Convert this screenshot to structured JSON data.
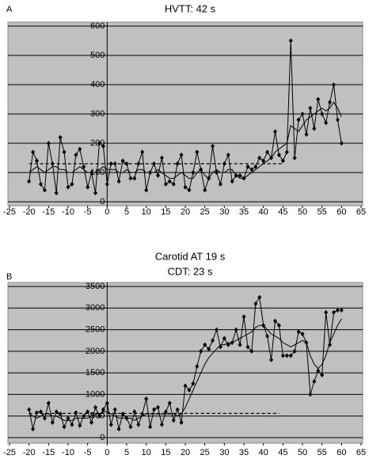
{
  "chart_data": [
    {
      "type": "line",
      "label": "A",
      "title": "HVTT: 42 s",
      "xlim": [
        -25,
        65
      ],
      "xticks": [
        -25,
        -20,
        -15,
        -10,
        -5,
        0,
        5,
        10,
        15,
        20,
        25,
        30,
        35,
        40,
        45,
        50,
        55,
        60,
        65
      ],
      "ylim": [
        0,
        600
      ],
      "yticks": [
        0,
        100,
        200,
        300,
        400,
        500,
        600
      ],
      "grid": true,
      "x": [
        -20,
        -19,
        -18,
        -17,
        -16,
        -15,
        -14,
        -13,
        -12,
        -11,
        -10,
        -9,
        -8,
        -7,
        -6,
        -5,
        -4,
        -3,
        -2,
        -1,
        0,
        1,
        2,
        3,
        4,
        5,
        6,
        7,
        8,
        9,
        10,
        11,
        12,
        13,
        14,
        15,
        16,
        17,
        18,
        19,
        20,
        21,
        22,
        23,
        24,
        25,
        26,
        27,
        28,
        29,
        30,
        31,
        32,
        33,
        34,
        35,
        36,
        37,
        38,
        39,
        40,
        41,
        42,
        43,
        44,
        45,
        46,
        47,
        48,
        49,
        50,
        51,
        52,
        53,
        54,
        55,
        56,
        57,
        58,
        59,
        60
      ],
      "series": [
        {
          "color": "#000000",
          "markers": true,
          "values": [
            70,
            170,
            140,
            60,
            40,
            200,
            130,
            30,
            220,
            170,
            50,
            60,
            160,
            180,
            120,
            50,
            100,
            30,
            200,
            190,
            60,
            130,
            130,
            70,
            140,
            130,
            80,
            80,
            130,
            170,
            40,
            100,
            130,
            90,
            150,
            60,
            70,
            60,
            130,
            160,
            50,
            40,
            100,
            170,
            110,
            40,
            80,
            190,
            100,
            60,
            130,
            160,
            70,
            90,
            90,
            80,
            120,
            110,
            120,
            150,
            140,
            170,
            150,
            240,
            160,
            140,
            170,
            550,
            150,
            280,
            300,
            230,
            320,
            250,
            350,
            300,
            270,
            340,
            400,
            280,
            200
          ]
        },
        {
          "color": "#000000",
          "markers": false,
          "values": [
            100,
            110,
            120,
            110,
            100,
            110,
            120,
            120,
            110,
            110,
            100,
            100,
            110,
            120,
            110,
            100,
            100,
            100,
            110,
            120,
            110,
            110,
            110,
            100,
            100,
            110,
            100,
            100,
            110,
            110,
            100,
            100,
            100,
            110,
            100,
            90,
            80,
            80,
            90,
            100,
            90,
            80,
            80,
            100,
            110,
            90,
            80,
            100,
            110,
            100,
            100,
            110,
            110,
            90,
            80,
            80,
            90,
            100,
            110,
            120,
            130,
            140,
            150,
            170,
            180,
            190,
            200,
            260,
            250,
            240,
            260,
            280,
            290,
            300,
            310,
            320,
            310,
            320,
            340,
            320,
            290
          ]
        },
        {
          "color": "#000000",
          "dashed": true,
          "markers": false,
          "x": [
            -20,
            45
          ],
          "values": [
            130,
            130
          ]
        }
      ]
    },
    {
      "type": "line",
      "label": "B",
      "title": "Carotid AT 19 s",
      "subtitle": "CDT: 23 s",
      "xlim": [
        -25,
        65
      ],
      "xticks": [
        -25,
        -20,
        -15,
        -10,
        -5,
        0,
        5,
        10,
        15,
        20,
        25,
        30,
        35,
        40,
        45,
        50,
        55,
        60,
        65
      ],
      "ylim": [
        0,
        3500
      ],
      "yticks": [
        0,
        500,
        1000,
        1500,
        2000,
        2500,
        3000,
        3500
      ],
      "grid": true,
      "x": [
        -20,
        -19,
        -18,
        -17,
        -16,
        -15,
        -14,
        -13,
        -12,
        -11,
        -10,
        -9,
        -8,
        -7,
        -6,
        -5,
        -4,
        -3,
        -2,
        -1,
        0,
        1,
        2,
        3,
        4,
        5,
        6,
        7,
        8,
        9,
        10,
        11,
        12,
        13,
        14,
        15,
        16,
        17,
        18,
        19,
        20,
        21,
        22,
        23,
        24,
        25,
        26,
        27,
        28,
        29,
        30,
        31,
        32,
        33,
        34,
        35,
        36,
        37,
        38,
        39,
        40,
        41,
        42,
        43,
        44,
        45,
        46,
        47,
        48,
        49,
        50,
        51,
        52,
        53,
        54,
        55,
        56,
        57,
        58,
        59,
        60
      ],
      "series": [
        {
          "color": "#000000",
          "markers": true,
          "values": [
            650,
            200,
            580,
            600,
            450,
            800,
            350,
            600,
            550,
            250,
            450,
            300,
            580,
            280,
            500,
            600,
            350,
            700,
            500,
            650,
            800,
            300,
            650,
            200,
            550,
            450,
            250,
            600,
            300,
            550,
            900,
            250,
            650,
            700,
            300,
            600,
            800,
            400,
            650,
            350,
            1200,
            1100,
            1250,
            1650,
            2000,
            2150,
            2050,
            2250,
            2500,
            2100,
            2300,
            2150,
            2200,
            2500,
            2150,
            2800,
            2100,
            2000,
            3100,
            3250,
            2600,
            2350,
            1800,
            2700,
            2600,
            1900,
            1900,
            1900,
            2000,
            2450,
            2400,
            2200,
            1000,
            1300,
            1550,
            1450,
            2900,
            2150,
            2900,
            2950,
            2950
          ]
        },
        {
          "color": "#000000",
          "markers": false,
          "values": [
            550,
            500,
            450,
            500,
            550,
            550,
            500,
            500,
            450,
            400,
            400,
            400,
            450,
            450,
            450,
            450,
            500,
            550,
            550,
            600,
            600,
            550,
            500,
            450,
            450,
            450,
            450,
            400,
            450,
            500,
            550,
            550,
            550,
            550,
            550,
            550,
            550,
            550,
            500,
            550,
            700,
            900,
            1100,
            1300,
            1500,
            1700,
            1850,
            1950,
            2050,
            2150,
            2150,
            2200,
            2200,
            2250,
            2300,
            2350,
            2400,
            2450,
            2550,
            2600,
            2600,
            2500,
            2400,
            2350,
            2300,
            2200,
            2150,
            2100,
            2150,
            2200,
            2250,
            2200,
            1900,
            1700,
            1600,
            1700,
            1900,
            2200,
            2400,
            2600,
            2750
          ]
        },
        {
          "color": "#000000",
          "dashed": true,
          "markers": false,
          "x": [
            -20,
            44
          ],
          "values": [
            560,
            560
          ]
        }
      ]
    }
  ]
}
